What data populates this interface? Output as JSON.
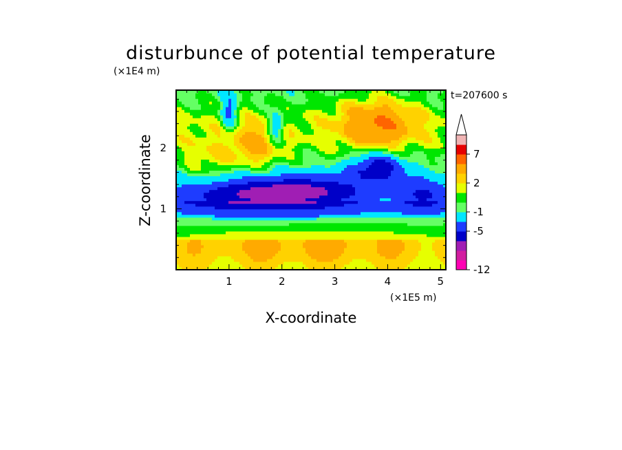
{
  "chart_data": {
    "type": "heatmap",
    "title": "disturbunce of potential temperature",
    "xlabel": "X-coordinate",
    "ylabel": "Z-coordinate",
    "x_unit": "(×1E5 m)",
    "y_unit": "(×1E4 m)",
    "time_label": "t=207600 s",
    "xlim": [
      0,
      5.1
    ],
    "ylim": [
      0,
      2.95
    ],
    "x_ticks": [
      "1",
      "2",
      "3",
      "4",
      "5"
    ],
    "x_tick_values": [
      1,
      2,
      3,
      4,
      5
    ],
    "y_ticks": [
      "1",
      "2"
    ],
    "y_tick_values": [
      1,
      2
    ],
    "colorbar": {
      "levels": [
        -12,
        -11,
        -9,
        -7,
        -5,
        -3,
        -1,
        0,
        1,
        2,
        3,
        5,
        7,
        9,
        11
      ],
      "labels": [
        "-12",
        "-5",
        "-1",
        "2",
        "7"
      ],
      "label_values": [
        -12,
        -5,
        -1,
        2,
        7
      ],
      "colors": [
        "#ff00b4",
        "#d21ea0",
        "#a01eb4",
        "#0000c8",
        "#1e3cff",
        "#00e6ff",
        "#64ff64",
        "#00e600",
        "#e6ff00",
        "#ffd200",
        "#ffaa00",
        "#ff6400",
        "#e60000",
        "#f0b4b4"
      ],
      "extend": "max"
    },
    "features": [
      {
        "x": 1.3,
        "z": 1.25,
        "value": -5,
        "sx": 1.6,
        "sz": 0.08
      },
      {
        "x": 4.7,
        "z": 1.25,
        "value": -4,
        "sx": 0.5,
        "sz": 0.08
      },
      {
        "x": 2.6,
        "z": 1.32,
        "value": -4,
        "sx": 1.2,
        "sz": 0.06
      },
      {
        "x": 2.5,
        "z": 1.0,
        "value": -1.5,
        "sx": 3.0,
        "sz": 0.12
      },
      {
        "x": 3.8,
        "z": 1.7,
        "value": -6,
        "sx": 0.5,
        "sz": 0.06
      },
      {
        "x": 3.8,
        "z": 2.4,
        "value": 4,
        "sx": 0.7,
        "sz": 0.2
      },
      {
        "x": 1.5,
        "z": 2.0,
        "value": 3,
        "sx": 0.5,
        "sz": 0.15
      },
      {
        "x": 0.6,
        "z": 1.75,
        "value": 2,
        "sx": 0.5,
        "sz": 0.15
      },
      {
        "x": 1.0,
        "z": 2.6,
        "value": -4,
        "sx": 0.15,
        "sz": 0.1
      },
      {
        "x": 1.9,
        "z": 2.35,
        "value": -4,
        "sx": 0.15,
        "sz": 0.08
      },
      {
        "x": 2.5,
        "z": 0.45,
        "value": 1.5,
        "sx": 2.5,
        "sz": 0.15
      }
    ]
  }
}
